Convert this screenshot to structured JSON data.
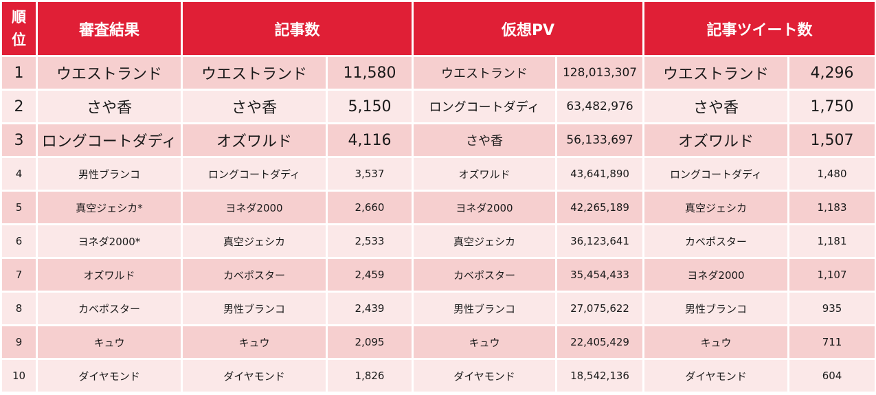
{
  "headers": {
    "rank": [
      "順",
      "位"
    ],
    "judging": "審査結果",
    "articles": "記事数",
    "pv": "仮想PV",
    "tweets": "記事ツイート数"
  },
  "rows": [
    {
      "rank": "1",
      "judging": "ウエストランド",
      "articles_name": "ウエストランド",
      "articles_count": "11,580",
      "pv_name": "ウエストランド",
      "pv_value": "128,013,307",
      "tweets_name": "ウエストランド",
      "tweets_count": "4,296"
    },
    {
      "rank": "2",
      "judging": "さや香",
      "articles_name": "さや香",
      "articles_count": "5,150",
      "pv_name": "ロングコートダディ",
      "pv_value": "63,482,976",
      "tweets_name": "さや香",
      "tweets_count": "1,750"
    },
    {
      "rank": "3",
      "judging": "ロングコートダディ",
      "articles_name": "オズワルド",
      "articles_count": "4,116",
      "pv_name": "さや香",
      "pv_value": "56,133,697",
      "tweets_name": "オズワルド",
      "tweets_count": "1,507"
    },
    {
      "rank": "4",
      "judging": "男性ブランコ",
      "articles_name": "ロングコートダディ",
      "articles_count": "3,537",
      "pv_name": "オズワルド",
      "pv_value": "43,641,890",
      "tweets_name": "ロングコートダディ",
      "tweets_count": "1,480"
    },
    {
      "rank": "5",
      "judging": "真空ジェシカ*",
      "articles_name": "ヨネダ2000",
      "articles_count": "2,660",
      "pv_name": "ヨネダ2000",
      "pv_value": "42,265,189",
      "tweets_name": "真空ジェシカ",
      "tweets_count": "1,183"
    },
    {
      "rank": "6",
      "judging": "ヨネダ2000*",
      "articles_name": "真空ジェシカ",
      "articles_count": "2,533",
      "pv_name": "真空ジェシカ",
      "pv_value": "36,123,641",
      "tweets_name": "カベポスター",
      "tweets_count": "1,181"
    },
    {
      "rank": "7",
      "judging": "オズワルド",
      "articles_name": "カベポスター",
      "articles_count": "2,459",
      "pv_name": "カベポスター",
      "pv_value": "35,454,433",
      "tweets_name": "ヨネダ2000",
      "tweets_count": "1,107"
    },
    {
      "rank": "8",
      "judging": "カベポスター",
      "articles_name": "男性ブランコ",
      "articles_count": "2,439",
      "pv_name": "男性ブランコ",
      "pv_value": "27,075,622",
      "tweets_name": "男性ブランコ",
      "tweets_count": "935"
    },
    {
      "rank": "9",
      "judging": "キュウ",
      "articles_name": "キュウ",
      "articles_count": "2,095",
      "pv_name": "キュウ",
      "pv_value": "22,405,429",
      "tweets_name": "キュウ",
      "tweets_count": "711"
    },
    {
      "rank": "10",
      "judging": "ダイヤモンド",
      "articles_name": "ダイヤモンド",
      "articles_count": "1,826",
      "pv_name": "ダイヤモンド",
      "pv_value": "18,542,136",
      "tweets_name": "ダイヤモンド",
      "tweets_count": "604"
    }
  ],
  "colors": {
    "header_bg": "#e01f36",
    "row_odd": "#f6cfcf",
    "row_even": "#fbe8e8"
  }
}
